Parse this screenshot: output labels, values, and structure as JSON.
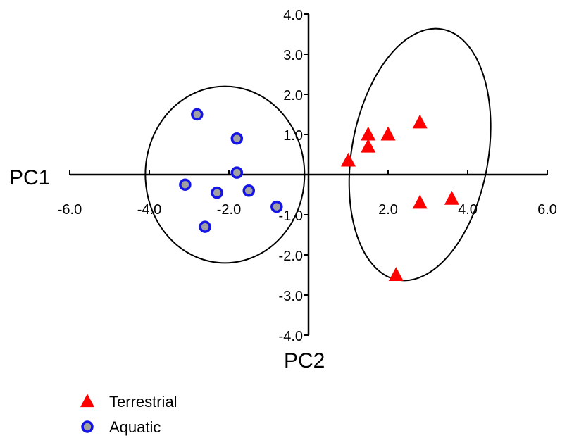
{
  "chart_data": {
    "type": "scatter",
    "xlabel": "PC1",
    "ylabel": "PC2",
    "xlim": [
      -6.0,
      6.0
    ],
    "ylim": [
      -4.0,
      4.0
    ],
    "xticks": [
      "-6.0",
      "-4.0",
      "-2.0",
      "2.0",
      "4.0",
      "6.0"
    ],
    "yticks": [
      "4.0",
      "3.0",
      "2.0",
      "1.0",
      "-1.0",
      "-2.0",
      "-3.0",
      "-4.0"
    ],
    "grid": false,
    "legend_position": "bottom-left",
    "series": [
      {
        "name": "Terrestrial",
        "marker": "triangle",
        "color": "#ff0000",
        "x": [
          1.5,
          2.0,
          2.8,
          1.5,
          1.0,
          2.8,
          3.6,
          2.2
        ],
        "y": [
          1.0,
          1.0,
          1.3,
          0.7,
          0.35,
          -0.7,
          -0.6,
          -2.5
        ]
      },
      {
        "name": "Aquatic",
        "marker": "circle",
        "fill": "#a0a0a0",
        "color": "#1414e6",
        "x": [
          -2.8,
          -1.8,
          -1.8,
          -3.1,
          -2.3,
          -1.5,
          -0.8,
          -2.6
        ],
        "y": [
          1.5,
          0.9,
          0.05,
          -0.25,
          -0.45,
          -0.4,
          -0.8,
          -1.3
        ]
      }
    ],
    "ellipses": [
      {
        "series": "Aquatic",
        "cx": -2.1,
        "cy": 0.0,
        "rx": 2.0,
        "ry": 2.2,
        "angle_deg": 0
      },
      {
        "series": "Terrestrial",
        "cx": 2.8,
        "cy": 0.5,
        "rx": 3.2,
        "ry": 1.7,
        "angle_deg": 80
      }
    ]
  }
}
